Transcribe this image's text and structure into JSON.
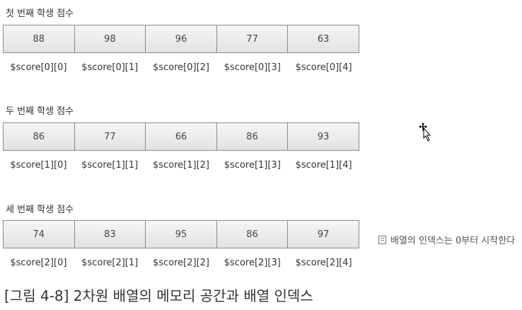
{
  "groups": [
    {
      "title": "첫 번째 학생 점수",
      "values": [
        "88",
        "98",
        "96",
        "77",
        "63"
      ],
      "labels": [
        "$score[0][0]",
        "$score[0][1]",
        "$score[0][2]",
        "$score[0][3]",
        "$score[0][4]"
      ]
    },
    {
      "title": "두 번째 학생 점수",
      "values": [
        "86",
        "77",
        "66",
        "86",
        "93"
      ],
      "labels": [
        "$score[1][0]",
        "$score[1][1]",
        "$score[1][2]",
        "$score[1][3]",
        "$score[1][4]"
      ]
    },
    {
      "title": "세 번째 학생 점수",
      "values": [
        "74",
        "83",
        "95",
        "86",
        "97"
      ],
      "labels": [
        "$score[2][0]",
        "$score[2][1]",
        "$score[2][2]",
        "$score[2][3]",
        "$score[2][4]"
      ]
    }
  ],
  "note": {
    "icon": "note-icon",
    "text": "배열의 인덱스는 0부터 시작한다"
  },
  "caption": "[그림 4-8] 2차원 배열의 메모리 공간과 배열 인덱스",
  "cursor": "move-cursor-icon"
}
